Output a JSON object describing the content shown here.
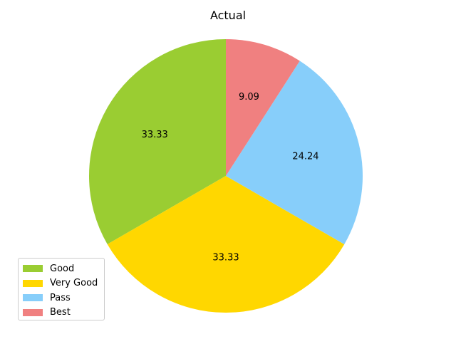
{
  "chart_data": {
    "type": "pie",
    "title": "Actual",
    "labels": [
      "Good",
      "Very Good",
      "Pass",
      "Best"
    ],
    "values": [
      33.33,
      33.33,
      24.24,
      9.09
    ],
    "value_labels": [
      "33.33",
      "33.33",
      "24.24",
      "9.09"
    ],
    "colors": [
      "#9acd32",
      "#ffd700",
      "#87cefa",
      "#f08080"
    ],
    "start_angle_deg": 90,
    "direction": "counterclockwise",
    "legend_position": "lower-left"
  }
}
